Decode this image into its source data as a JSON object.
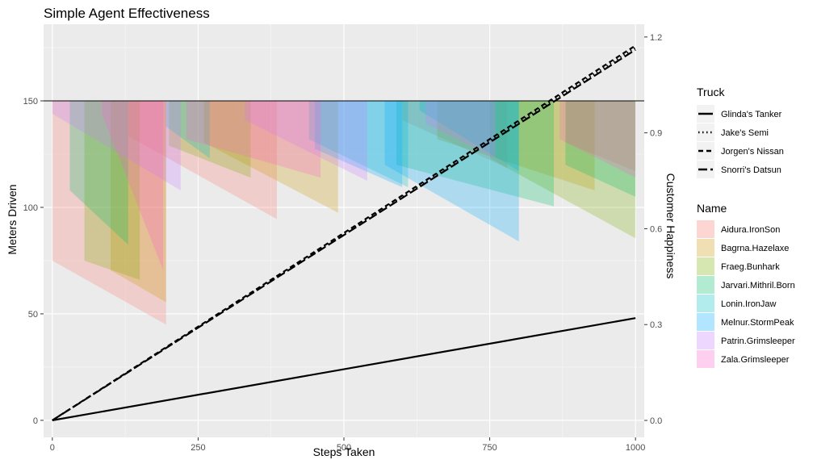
{
  "chart_data": {
    "type": "area",
    "title": "Simple Agent Effectiveness",
    "xlabel": "Steps Taken",
    "ylabel": "Meters Driven",
    "y2label": "Customer Happiness",
    "xlim": [
      -15,
      1015
    ],
    "ylim": [
      -8,
      186
    ],
    "y2lim": [
      -0.053,
      1.24
    ],
    "x_ticks": [
      0,
      250,
      500,
      750,
      1000
    ],
    "y_ticks": [
      0,
      50,
      100,
      150
    ],
    "y2_ticks": [
      0.0,
      0.3,
      0.6,
      0.9,
      1.2
    ],
    "y2_tick_labels": [
      "0.0",
      "0.3",
      "0.6",
      "0.9",
      "1.2"
    ],
    "hline_y": 150,
    "grid": true,
    "legend_position": "right",
    "happiness_fill_top": 1.0,
    "truck_legend": {
      "title": "Truck",
      "entries": [
        {
          "name": "Glinda's Tanker",
          "dash": "solid"
        },
        {
          "name": "Jake's Semi",
          "dash": "dotted"
        },
        {
          "name": "Jorgen's Nissan",
          "dash": "dashed"
        },
        {
          "name": "Snorri's Datsun",
          "dash": "longdash"
        }
      ]
    },
    "truck_lines": [
      {
        "name": "Glinda's Tanker",
        "dash": "solid",
        "x": [
          0,
          1000
        ],
        "y": [
          0,
          48
        ]
      },
      {
        "name": "Jake's Semi",
        "dash": "dotted",
        "x": [
          0,
          1000
        ],
        "y": [
          0,
          175
        ]
      },
      {
        "name": "Jorgen's Nissan",
        "dash": "dashed",
        "x": [
          0,
          1000
        ],
        "y": [
          0,
          176
        ]
      },
      {
        "name": "Snorri's Datsun",
        "dash": "longdash",
        "x": [
          0,
          1000
        ],
        "y": [
          0,
          174
        ]
      }
    ],
    "name_legend": {
      "title": "Name",
      "entries": [
        {
          "name": "Aidura.IronSon",
          "color": "#F8766D"
        },
        {
          "name": "Bagrna.Hazelaxe",
          "color": "#CD9600"
        },
        {
          "name": "Fraeg.Bunhark",
          "color": "#7CAE00"
        },
        {
          "name": "Jarvari.Mithril.Born",
          "color": "#00BE67"
        },
        {
          "name": "Lonin.IronJaw",
          "color": "#00BFC4"
        },
        {
          "name": "Melnur.StormPeak",
          "color": "#00A9FF"
        },
        {
          "name": "Patrin.Grimsleeper",
          "color": "#C77CFF"
        },
        {
          "name": "Zala.Grimsleeper",
          "color": "#FF61CC"
        }
      ]
    },
    "series": [
      {
        "name": "Aidura.IronSon",
        "color": "#F8766D",
        "segments": [
          {
            "x0": 0,
            "x1": 195,
            "y0": 0.5,
            "y1": 0.3
          },
          {
            "x0": 130,
            "x1": 385,
            "y0": 0.89,
            "y1": 0.63
          },
          {
            "x0": 600,
            "x1": 780,
            "y0": 0.94,
            "y1": 0.79
          },
          {
            "x0": 880,
            "x1": 1000,
            "y0": 0.87,
            "y1": 0.78
          }
        ]
      },
      {
        "name": "Bagrna.Hazelaxe",
        "color": "#CD9600",
        "segments": [
          {
            "x0": 100,
            "x1": 195,
            "y0": 0.47,
            "y1": 0.37
          },
          {
            "x0": 260,
            "x1": 490,
            "y0": 0.87,
            "y1": 0.65
          },
          {
            "x0": 660,
            "x1": 930,
            "y0": 0.88,
            "y1": 0.72
          }
        ]
      },
      {
        "name": "Fraeg.Bunhark",
        "color": "#7CAE00",
        "segments": [
          {
            "x0": 55,
            "x1": 150,
            "y0": 0.5,
            "y1": 0.44
          },
          {
            "x0": 200,
            "x1": 340,
            "y0": 0.86,
            "y1": 0.76
          },
          {
            "x0": 750,
            "x1": 1000,
            "y0": 0.82,
            "y1": 0.57
          }
        ]
      },
      {
        "name": "Jarvari.Mithril.Born",
        "color": "#00BE67",
        "segments": [
          {
            "x0": 30,
            "x1": 130,
            "y0": 0.72,
            "y1": 0.55
          },
          {
            "x0": 590,
            "x1": 860,
            "y0": 0.8,
            "y1": 0.67
          },
          {
            "x0": 880,
            "x1": 1000,
            "y0": 0.8,
            "y1": 0.7
          }
        ]
      },
      {
        "name": "Lonin.IronJaw",
        "color": "#00BFC4",
        "segments": [
          {
            "x0": 195,
            "x1": 270,
            "y0": 0.92,
            "y1": 0.82
          },
          {
            "x0": 440,
            "x1": 610,
            "y0": 0.88,
            "y1": 0.73
          },
          {
            "x0": 630,
            "x1": 800,
            "y0": 0.97,
            "y1": 0.78
          }
        ]
      },
      {
        "name": "Melnur.StormPeak",
        "color": "#00A9FF",
        "segments": [
          {
            "x0": 570,
            "x1": 800,
            "y0": 0.8,
            "y1": 0.56
          },
          {
            "x0": 450,
            "x1": 600,
            "y0": 0.85,
            "y1": 0.73
          }
        ]
      },
      {
        "name": "Patrin.Grimsleeper",
        "color": "#C77CFF",
        "segments": [
          {
            "x0": 0,
            "x1": 220,
            "y0": 0.96,
            "y1": 0.72
          },
          {
            "x0": 330,
            "x1": 540,
            "y0": 0.94,
            "y1": 0.75
          },
          {
            "x0": 640,
            "x1": 760,
            "y0": 0.93,
            "y1": 0.82
          }
        ]
      },
      {
        "name": "Zala.Grimsleeper",
        "color": "#FF61CC",
        "segments": [
          {
            "x0": 85,
            "x1": 190,
            "y0": 0.96,
            "y1": 0.47
          },
          {
            "x0": 230,
            "x1": 460,
            "y0": 0.88,
            "y1": 0.76
          },
          {
            "x0": 870,
            "x1": 1000,
            "y0": 0.88,
            "y1": 0.76
          }
        ]
      }
    ]
  }
}
